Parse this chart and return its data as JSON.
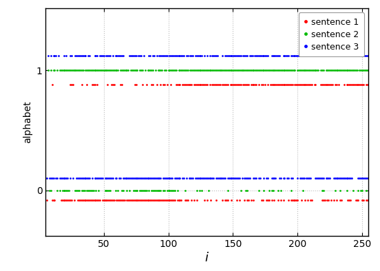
{
  "title": "",
  "xlabel": "$i$",
  "ylabel": "alphabet",
  "xlim": [
    5,
    255
  ],
  "ylim": [
    -0.38,
    1.52
  ],
  "yticks": [
    0,
    1
  ],
  "xticks": [
    50,
    100,
    150,
    200,
    250
  ],
  "colors": {
    "sentence1": "#ff0000",
    "sentence2": "#00bb00",
    "sentence3": "#0000ff"
  },
  "legend_labels": [
    "sentence 1",
    "sentence 2",
    "sentence 3"
  ],
  "marker_size": 2.0,
  "figsize": [
    5.52,
    3.94
  ],
  "dpi": 100,
  "n_tokens": 256,
  "bg_color": "#ffffff",
  "grid_color": "#bbbbbb",
  "y_offsets": {
    "s1_0": -0.08,
    "s1_1": 0.88,
    "s2_0": 0.0,
    "s2_1": 1.0,
    "s3_0": 0.1,
    "s3_1": 1.12
  }
}
